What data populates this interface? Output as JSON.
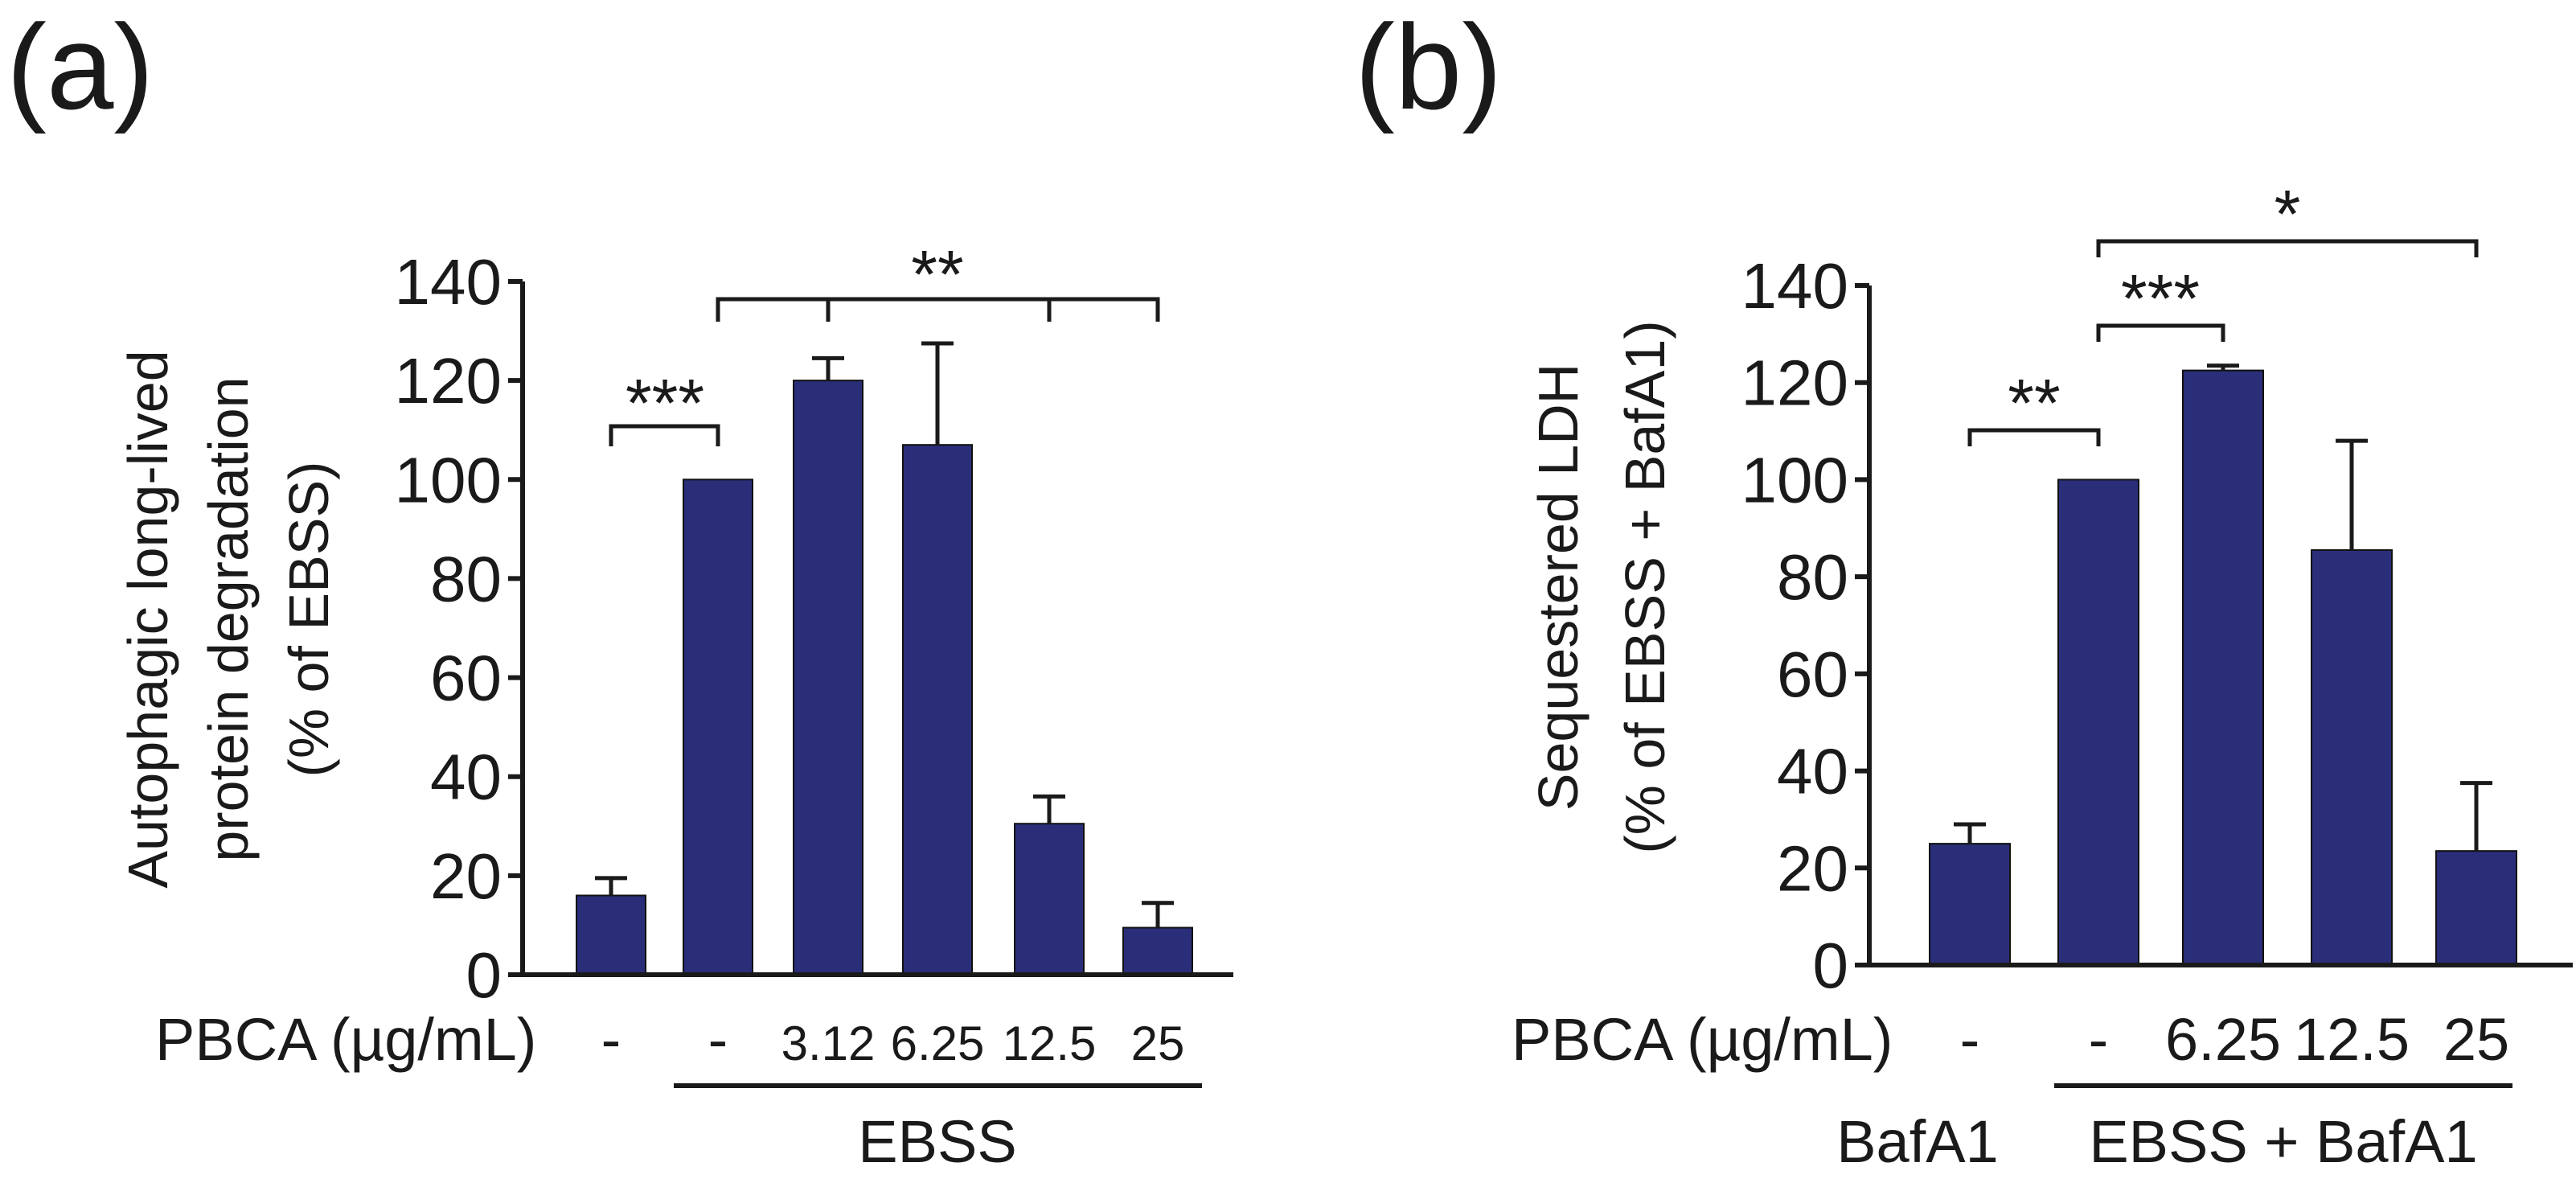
{
  "colors": {
    "bar": "#2a2e78",
    "ink": "#1a1a1a"
  },
  "chart_data": [
    {
      "type": "bar",
      "panel_label": "(a)",
      "ylabel_lines": [
        "Autophagic long-lived",
        "protein degradation",
        "(% of EBSS)"
      ],
      "ylim": [
        0,
        140
      ],
      "yticks": [
        "0",
        "20",
        "40",
        "60",
        "80",
        "100",
        "120",
        "140"
      ],
      "row_label": "PBCA (µg/mL)",
      "categories": [
        "-",
        "-",
        "3.12",
        "6.25",
        "12.5",
        "25"
      ],
      "values": [
        16,
        100,
        120,
        107,
        30.5,
        9.5
      ],
      "errors": [
        3.5,
        0,
        4.5,
        20.5,
        5.5,
        5
      ],
      "group_labels": [
        "EBSS"
      ],
      "significance": [
        "***",
        "**"
      ]
    },
    {
      "type": "bar",
      "panel_label": "(b)",
      "ylabel_lines": [
        "Sequestered LDH",
        "(% of EBSS + BafA1)"
      ],
      "ylim": [
        0,
        140
      ],
      "yticks": [
        "0",
        "20",
        "40",
        "60",
        "80",
        "100",
        "120",
        "140"
      ],
      "row_label": "PBCA (µg/mL)",
      "categories": [
        "-",
        "-",
        "6.25",
        "12.5",
        "25"
      ],
      "values": [
        25,
        100,
        122.5,
        85.5,
        23.5
      ],
      "errors": [
        4,
        0,
        1,
        22.5,
        14
      ],
      "group_labels": [
        "BafA1",
        "EBSS + BafA1"
      ],
      "significance": [
        "**",
        "***",
        "*"
      ]
    }
  ]
}
